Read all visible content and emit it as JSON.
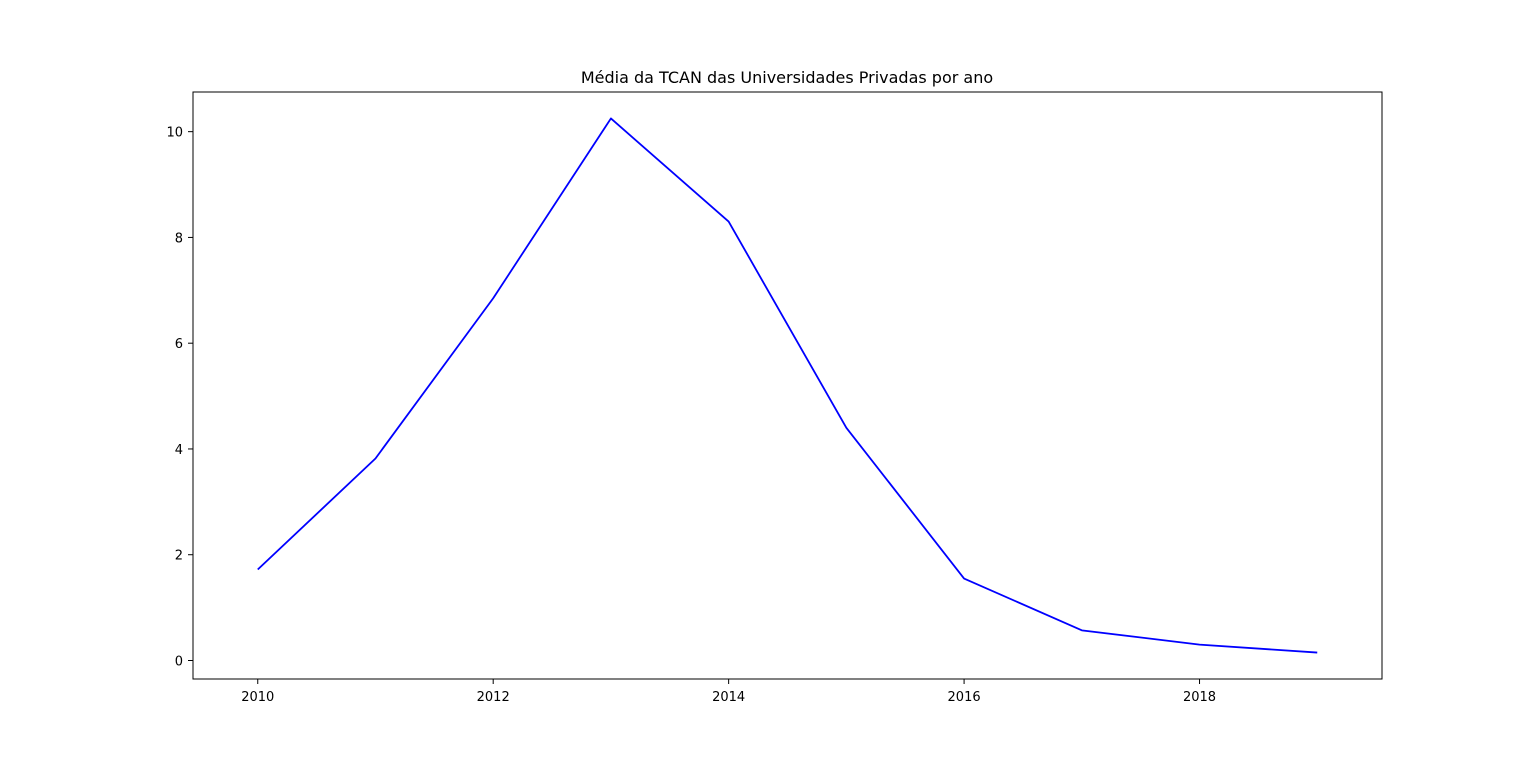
{
  "chart_data": {
    "type": "line",
    "title": "Média da TCAN das Universidades Privadas por ano",
    "xlabel": "",
    "ylabel": "",
    "x": [
      2010,
      2011,
      2012,
      2013,
      2014,
      2015,
      2016,
      2017,
      2018,
      2019
    ],
    "series": [
      {
        "values": [
          1.72,
          3.82,
          6.85,
          10.25,
          8.3,
          4.4,
          1.55,
          0.57,
          0.3,
          0.15
        ],
        "color": "#0000ff"
      }
    ],
    "xlim": [
      2009.45,
      2019.55
    ],
    "ylim": [
      -0.35,
      10.75
    ],
    "xticks": [
      2010,
      2012,
      2014,
      2016,
      2018
    ],
    "yticks": [
      0,
      2,
      4,
      6,
      8,
      10
    ],
    "grid": false,
    "legend": "none"
  }
}
